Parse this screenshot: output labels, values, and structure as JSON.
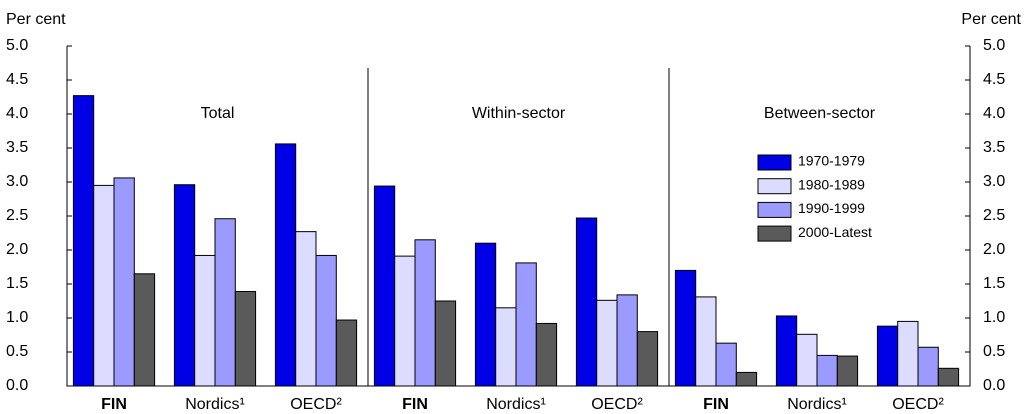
{
  "chart_data": {
    "type": "bar",
    "ylabel": "Per cent",
    "ylim": [
      0,
      5
    ],
    "yticks": [
      {
        "value": 0,
        "label": "0.0"
      },
      0.5,
      {
        "value": 1,
        "label": "1.0"
      },
      1.5,
      {
        "value": 2,
        "label": "2.0"
      },
      2.5,
      {
        "value": 3,
        "label": "3.0"
      },
      3.5,
      {
        "value": 4,
        "label": "4.0"
      },
      4.5,
      {
        "value": 5,
        "label": "5.0"
      }
    ],
    "categories": [
      "FIN",
      "Nordics¹",
      "OECD²"
    ],
    "series": [
      {
        "name": "1970-1979",
        "color": "#0000e6"
      },
      {
        "name": "1980-1989",
        "color": "#dcdcff"
      },
      {
        "name": "1990-1999",
        "color": "#9a9aff"
      },
      {
        "name": "2000-Latest",
        "color": "#5a5a5a"
      }
    ],
    "panels": [
      {
        "title": "Total",
        "values": [
          [
            4.27,
            2.96,
            3.56
          ],
          [
            2.95,
            1.92,
            2.27
          ],
          [
            3.06,
            2.46,
            1.92
          ],
          [
            1.65,
            1.39,
            0.97
          ]
        ]
      },
      {
        "title": "Within-sector",
        "values": [
          [
            2.94,
            2.1,
            2.47
          ],
          [
            1.91,
            1.15,
            1.26
          ],
          [
            2.15,
            1.81,
            1.34
          ],
          [
            1.25,
            0.92,
            0.8
          ]
        ]
      },
      {
        "title": "Between-sector",
        "values": [
          [
            1.7,
            1.03,
            0.88
          ],
          [
            1.31,
            0.76,
            0.95
          ],
          [
            0.63,
            0.45,
            0.57
          ],
          [
            0.2,
            0.44,
            0.26
          ]
        ]
      }
    ]
  }
}
